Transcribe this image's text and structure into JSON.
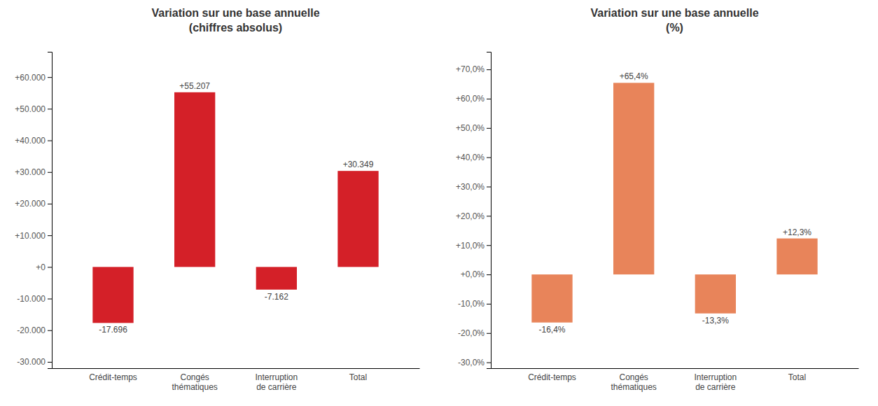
{
  "chart_data": [
    {
      "type": "bar",
      "title": "Variation sur une base annuelle\n(chiffres absolus)",
      "categories": [
        "Crédit-temps",
        "Congés\nthématiques",
        "Interruption\nde carrière",
        "Total"
      ],
      "values": [
        -17696,
        55207,
        -7162,
        30349
      ],
      "value_labels": [
        "-17.696",
        "+55.207",
        "-7.162",
        "+30.349"
      ],
      "color": "#D42028",
      "ylim": [
        -32000,
        68000
      ],
      "yticks": [
        {
          "value": -30000,
          "label": "-30.000"
        },
        {
          "value": -20000,
          "label": "-20.000"
        },
        {
          "value": -10000,
          "label": "-10.000"
        },
        {
          "value": 0,
          "label": "+0"
        },
        {
          "value": 10000,
          "label": "+10.000"
        },
        {
          "value": 20000,
          "label": "+20.000"
        },
        {
          "value": 30000,
          "label": "+30.000"
        },
        {
          "value": 40000,
          "label": "+40.000"
        },
        {
          "value": 50000,
          "label": "+50.000"
        },
        {
          "value": 60000,
          "label": "+60.000"
        }
      ],
      "grid": false,
      "data_labels": true
    },
    {
      "type": "bar",
      "title": "Variation sur une base annuelle\n(%)",
      "categories": [
        "Crédit-temps",
        "Congés\nthématiques",
        "Interruption\nde carrière",
        "Total"
      ],
      "values": [
        -16.4,
        65.4,
        -13.3,
        12.3
      ],
      "value_labels": [
        "-16,4%",
        "+65,4%",
        "-13,3%",
        "+12,3%"
      ],
      "color": "#E8845A",
      "ylim": [
        -32.0,
        76.0
      ],
      "yticks": [
        {
          "value": -30.0,
          "label": "-30,0%"
        },
        {
          "value": -20.0,
          "label": "-20,0%"
        },
        {
          "value": -10.0,
          "label": "-10,0%"
        },
        {
          "value": 0.0,
          "label": "+0,0%"
        },
        {
          "value": 10.0,
          "label": "+10,0%"
        },
        {
          "value": 20.0,
          "label": "+20,0%"
        },
        {
          "value": 30.0,
          "label": "+30,0%"
        },
        {
          "value": 40.0,
          "label": "+40,0%"
        },
        {
          "value": 50.0,
          "label": "+50,0%"
        },
        {
          "value": 60.0,
          "label": "+60,0%"
        },
        {
          "value": 70.0,
          "label": "+70,0%"
        }
      ],
      "grid": false,
      "data_labels": true
    }
  ]
}
